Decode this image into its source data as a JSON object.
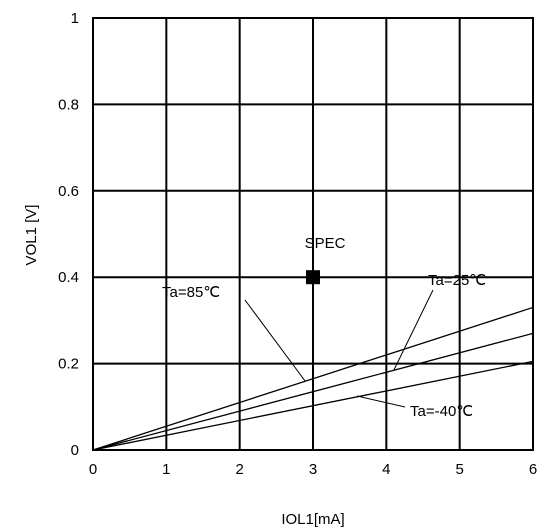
{
  "chart_data": {
    "type": "line",
    "xlabel": "IOL1[mA]",
    "ylabel": "VOL1 [V]",
    "xlim": [
      0,
      6
    ],
    "ylim": [
      0,
      1
    ],
    "x_ticks": [
      0,
      1,
      2,
      3,
      4,
      5,
      6
    ],
    "y_ticks": [
      0,
      0.2,
      0.4,
      0.6,
      0.8,
      1
    ],
    "y_tick_labels": [
      "0",
      "0.2",
      "0.4",
      "0.6",
      "0.8",
      "1"
    ],
    "grid": true,
    "series": [
      {
        "name": "Ta=85℃",
        "x": [
          0,
          6
        ],
        "y": [
          0,
          0.33
        ]
      },
      {
        "name": "Ta=25℃",
        "x": [
          0,
          6
        ],
        "y": [
          0,
          0.27
        ]
      },
      {
        "name": "Ta=-40℃",
        "x": [
          0,
          6
        ],
        "y": [
          0,
          0.205
        ]
      }
    ],
    "spec_point": {
      "label": "SPEC",
      "x": 3,
      "y": 0.4
    },
    "annotations": [
      {
        "text": "Ta=85℃",
        "series_index": 0,
        "target": {
          "x": 2.9,
          "y": 0.158
        }
      },
      {
        "text": "Ta=25℃",
        "series_index": 1,
        "target": {
          "x": 4.1,
          "y": 0.184
        }
      },
      {
        "text": "Ta=-40℃",
        "series_index": 2,
        "target": {
          "x": 3.6,
          "y": 0.125
        }
      }
    ]
  }
}
